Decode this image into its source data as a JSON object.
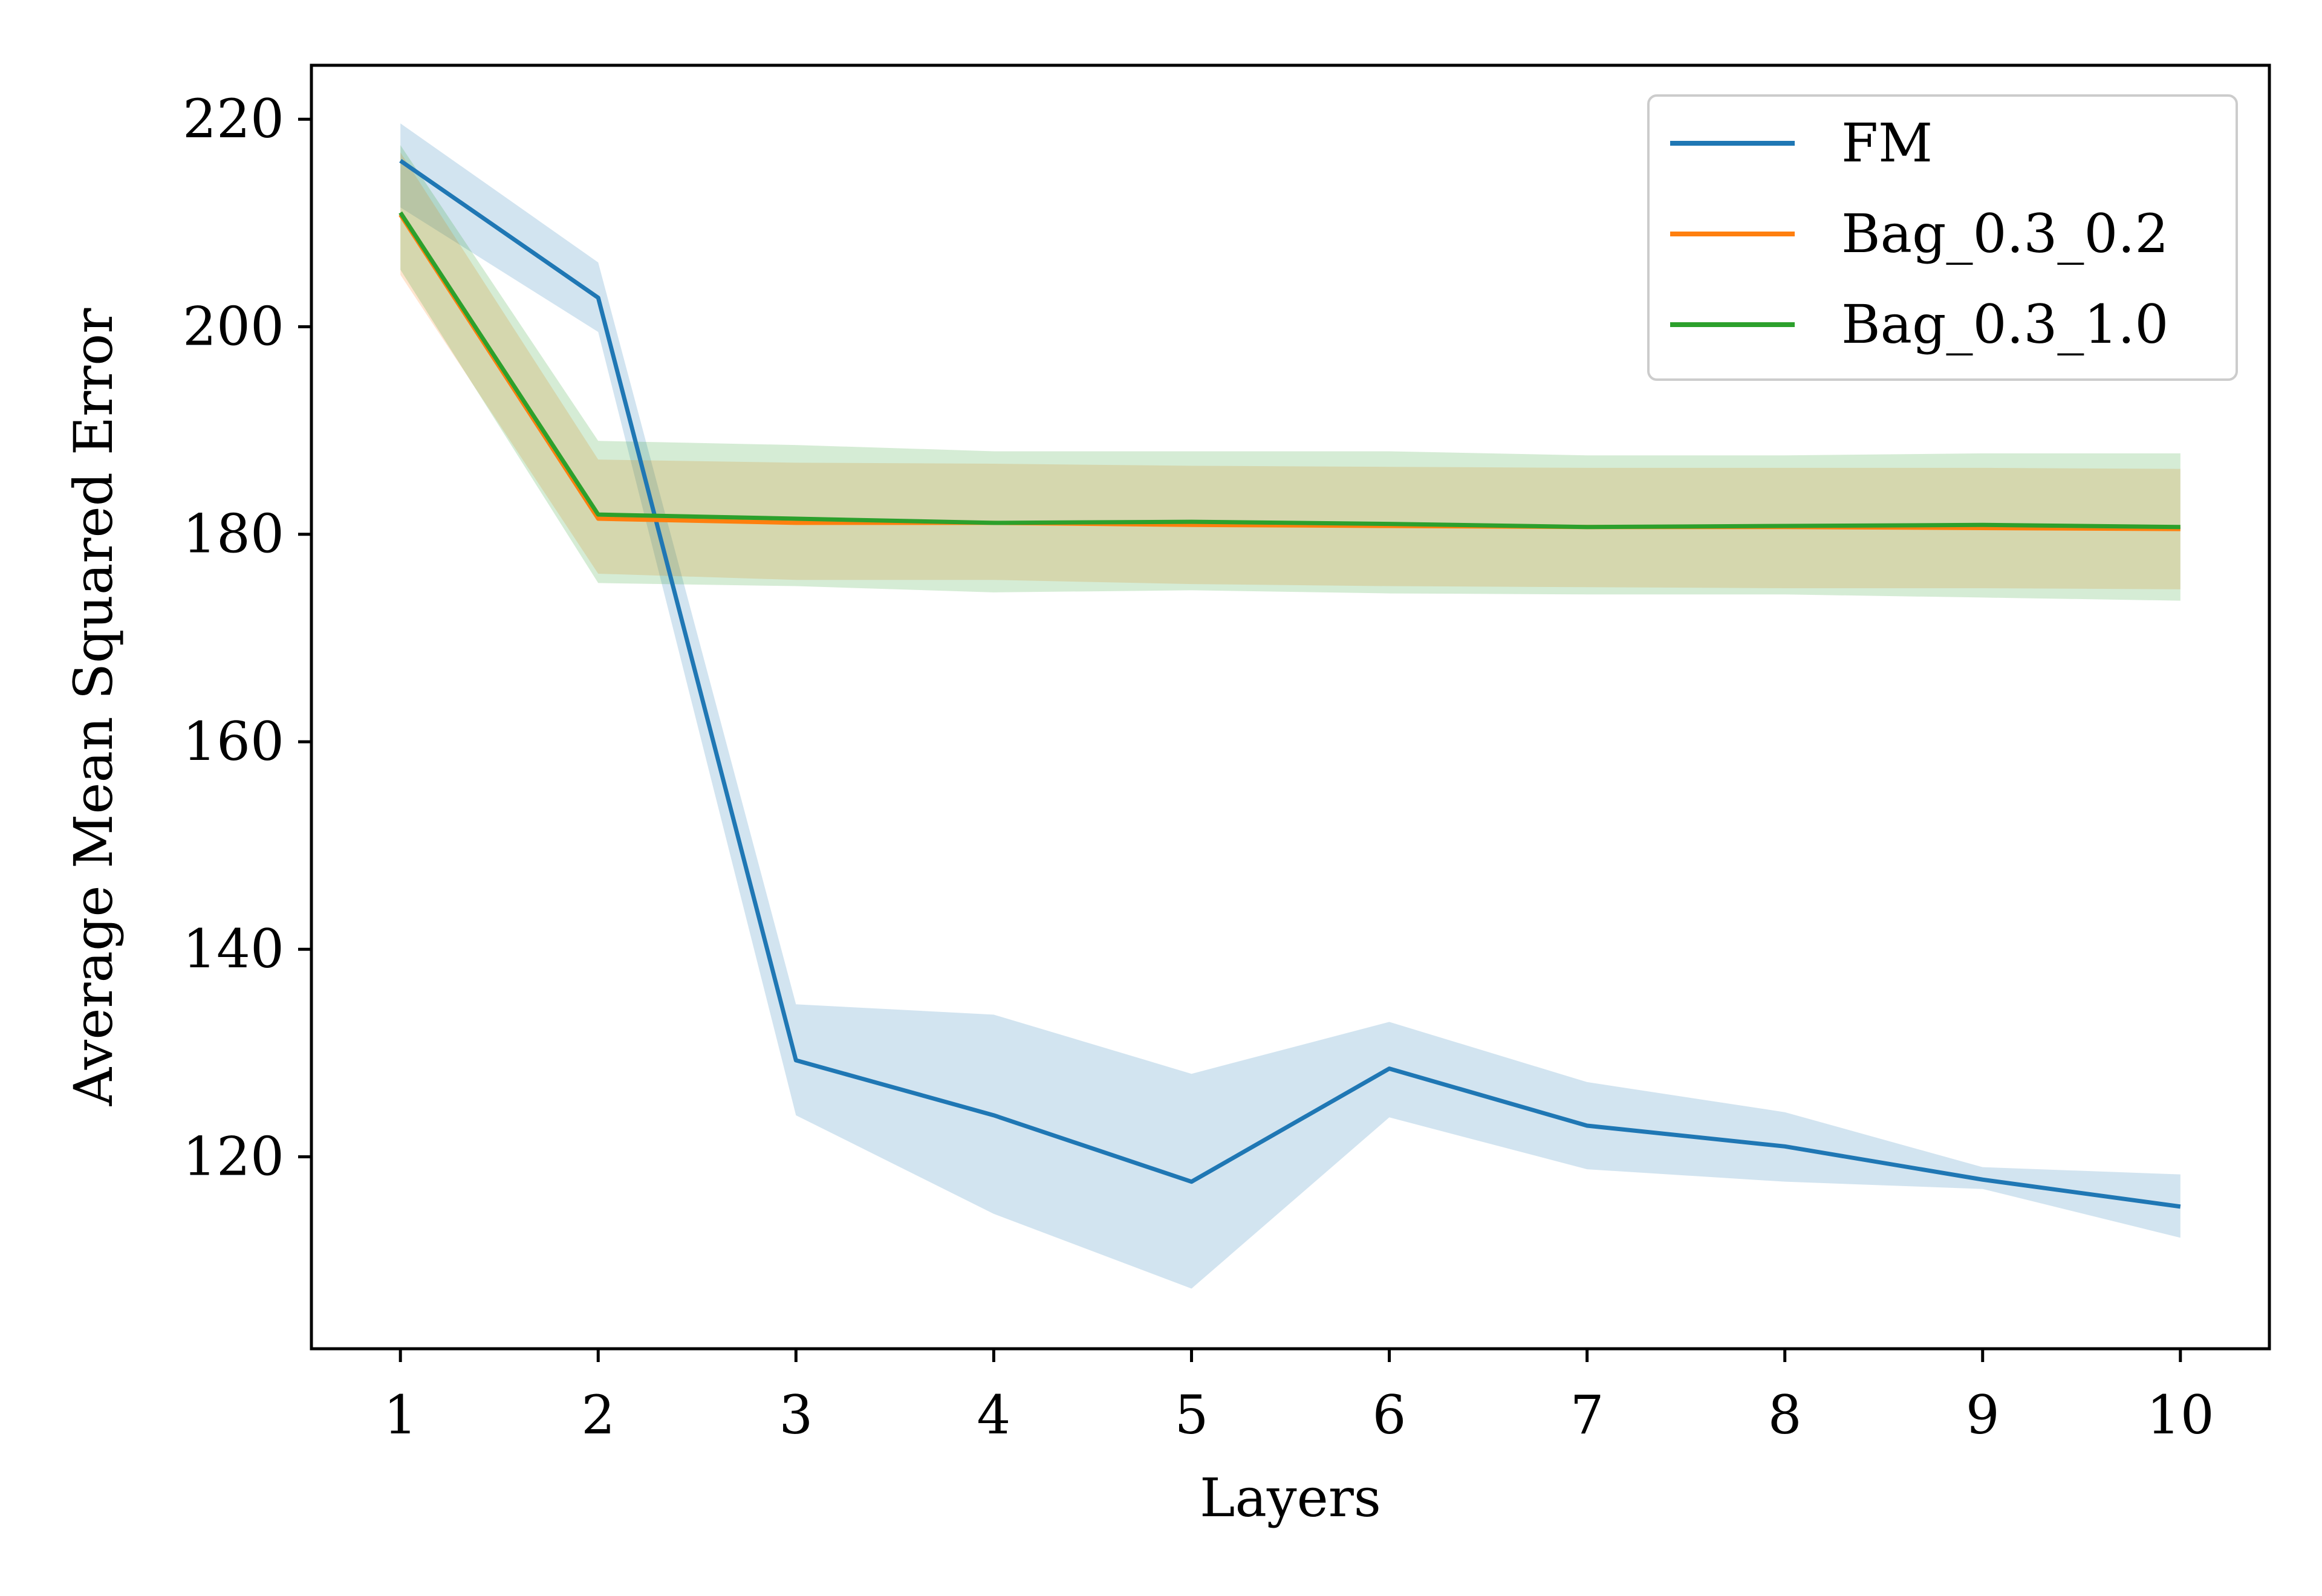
{
  "chart_data": {
    "type": "line",
    "xlabel": "Layers",
    "ylabel": "Average Mean Squared Error",
    "x": [
      1,
      2,
      3,
      4,
      5,
      6,
      7,
      8,
      9,
      10
    ],
    "xticks": [
      "1",
      "2",
      "3",
      "4",
      "5",
      "6",
      "7",
      "8",
      "9",
      "10"
    ],
    "yticks": [
      "120",
      "140",
      "160",
      "180",
      "200",
      "220"
    ],
    "ytick_values": [
      120,
      140,
      160,
      180,
      200,
      220
    ],
    "xlim": [
      0.55,
      10.45
    ],
    "ylim": [
      101.5,
      225.2
    ],
    "grid": false,
    "legend_position": "top-right",
    "series": [
      {
        "name": "FM",
        "color": "#1f77b4",
        "values": [
          216.0,
          202.8,
          129.3,
          124.0,
          117.6,
          128.5,
          123.0,
          121.0,
          117.8,
          115.2
        ],
        "lower": [
          211.5,
          199.5,
          124.0,
          114.5,
          107.3,
          123.8,
          118.8,
          117.6,
          116.9,
          112.2
        ],
        "upper": [
          219.6,
          206.2,
          134.7,
          133.7,
          128.0,
          133.0,
          127.2,
          124.3,
          119.0,
          118.3
        ]
      },
      {
        "name": "Bag_0.3_0.2",
        "color": "#ff7f0e",
        "values": [
          210.8,
          181.5,
          181.1,
          181.1,
          180.9,
          180.8,
          180.7,
          180.7,
          180.6,
          180.5
        ],
        "lower": [
          205.0,
          176.2,
          175.6,
          175.6,
          175.2,
          175.0,
          174.9,
          174.8,
          174.8,
          174.7
        ],
        "upper": [
          216.8,
          187.2,
          186.9,
          186.8,
          186.6,
          186.5,
          186.4,
          186.4,
          186.4,
          186.3
        ]
      },
      {
        "name": "Bag_0.3_1.0",
        "color": "#2ca02c",
        "values": [
          211.0,
          181.9,
          181.5,
          181.1,
          181.2,
          181.0,
          180.7,
          180.8,
          180.9,
          180.7
        ],
        "lower": [
          205.5,
          175.3,
          175.0,
          174.4,
          174.6,
          174.3,
          174.2,
          174.2,
          173.9,
          173.6
        ],
        "upper": [
          217.5,
          189.0,
          188.6,
          188.0,
          188.0,
          188.0,
          187.6,
          187.6,
          187.8,
          187.8
        ]
      }
    ]
  }
}
